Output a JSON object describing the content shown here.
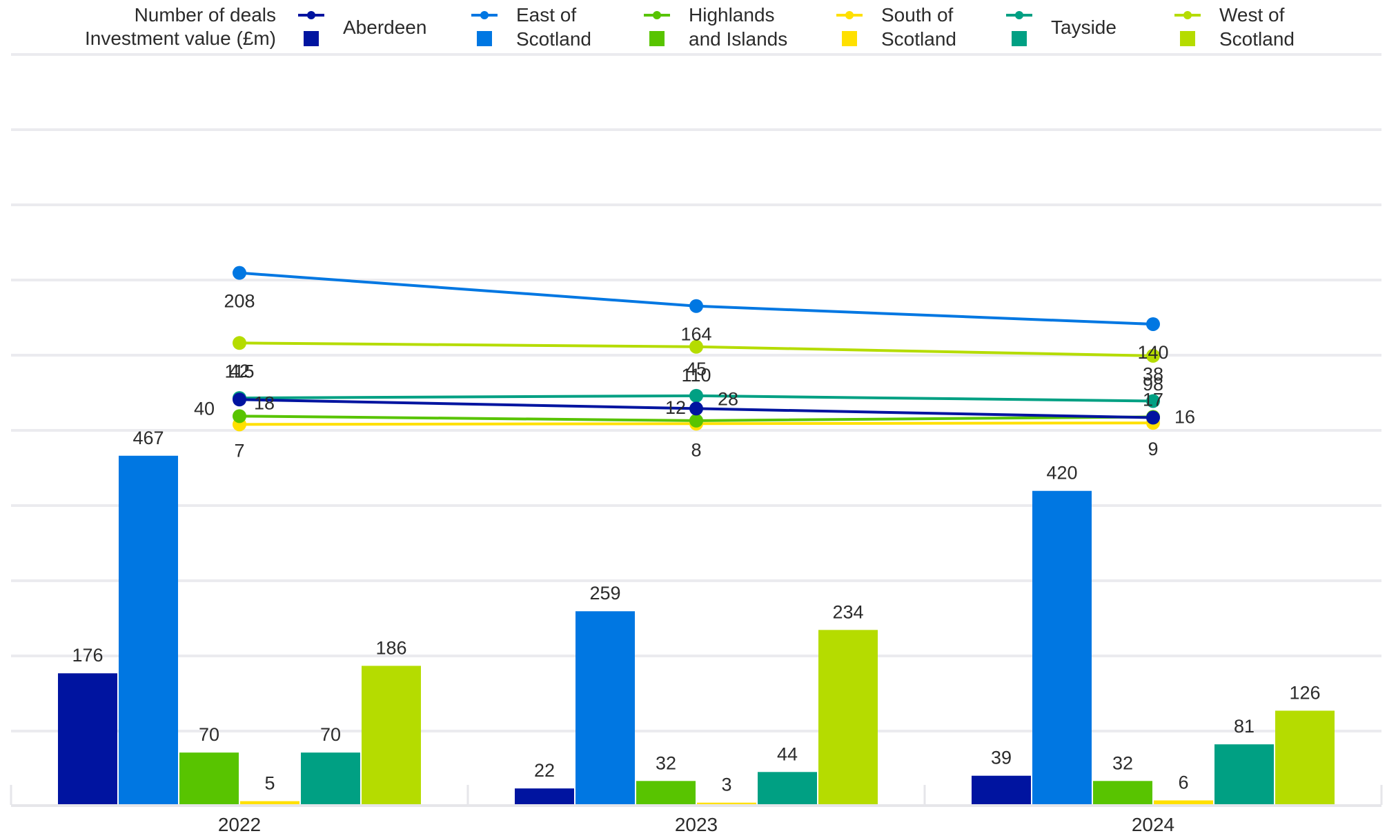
{
  "legend": {
    "line_row_label": "Number of deals",
    "bar_row_label": "Investment value (£m)"
  },
  "chart_data": {
    "type": "bar+line",
    "categories": [
      "2022",
      "2023",
      "2024"
    ],
    "series": [
      {
        "name": "Aberdeen",
        "legend_lines": [
          "Aberdeen"
        ],
        "color": "#0014a0",
        "deals": [
          40,
          28,
          16
        ],
        "investment": [
          176,
          22,
          39
        ]
      },
      {
        "name": "East of Scotland",
        "legend_lines": [
          "East of",
          "Scotland"
        ],
        "color": "#0077e2",
        "deals": [
          208,
          164,
          140
        ],
        "investment": [
          467,
          259,
          420
        ]
      },
      {
        "name": "Highlands and Islands",
        "legend_lines": [
          "Highlands",
          "and Islands"
        ],
        "color": "#58c400",
        "deals": [
          18,
          12,
          17
        ],
        "investment": [
          70,
          32,
          32
        ]
      },
      {
        "name": "South of Scotland",
        "legend_lines": [
          "South of",
          "Scotland"
        ],
        "color": "#ffe000",
        "deals": [
          7,
          8,
          9
        ],
        "investment": [
          5,
          3,
          6
        ]
      },
      {
        "name": "Tayside",
        "legend_lines": [
          "Tayside"
        ],
        "color": "#00a083",
        "deals": [
          42,
          45,
          38
        ],
        "investment": [
          70,
          44,
          81
        ]
      },
      {
        "name": "West of Scotland",
        "legend_lines": [
          "West of",
          "Scotland"
        ],
        "color": "#b5dc00",
        "deals": [
          115,
          110,
          98
        ],
        "investment": [
          186,
          234,
          126
        ]
      }
    ],
    "grid": true,
    "legend_position": "top"
  }
}
